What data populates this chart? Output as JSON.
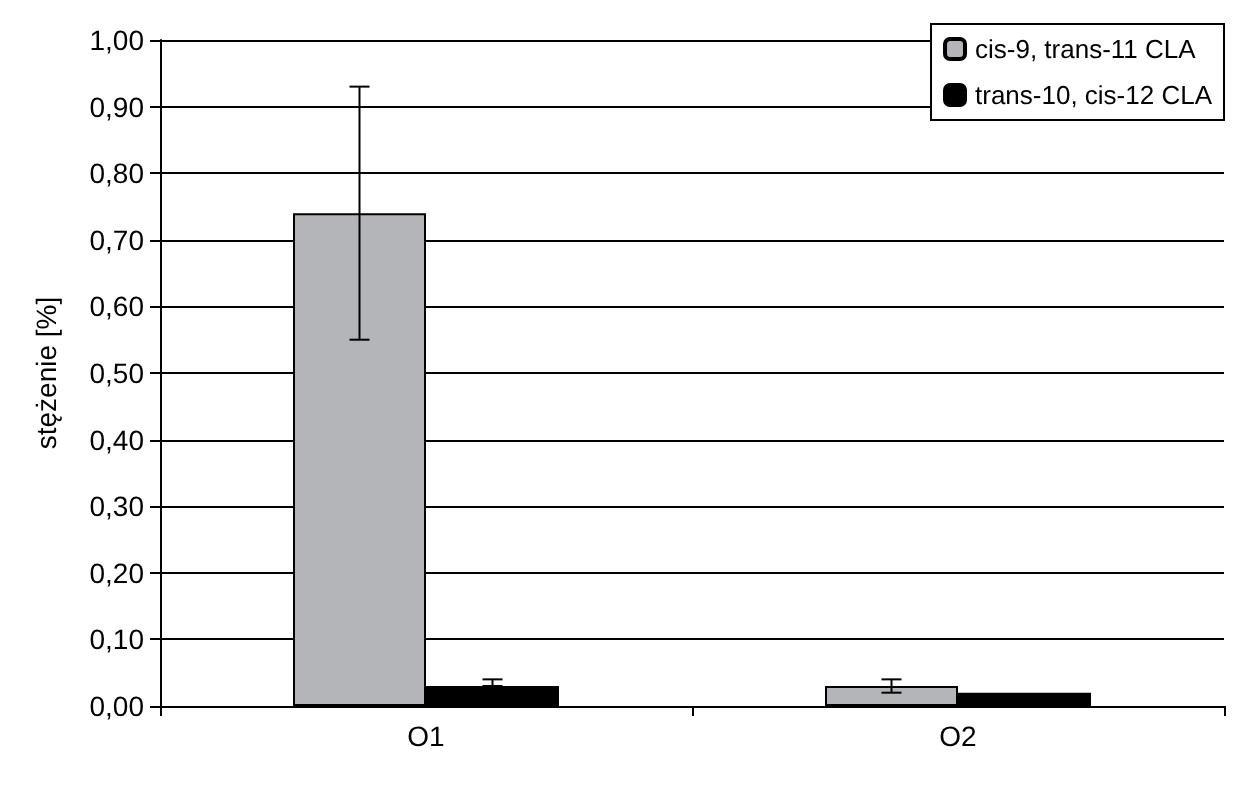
{
  "chart_data": {
    "type": "bar",
    "ylabel": "stężenie [%]",
    "categories": [
      "O1",
      "O2"
    ],
    "series": [
      {
        "name": "cis-9, trans-11 CLA",
        "color": "#b4b5b9",
        "values": [
          0.74,
          0.03
        ],
        "errors": [
          [
            0.55,
            0.93
          ],
          [
            0.02,
            0.04
          ]
        ]
      },
      {
        "name": "trans-10, cis-12 CLA",
        "color": "#000000",
        "values": [
          0.03,
          0.02
        ],
        "errors": [
          [
            0.03,
            0.04
          ],
          null
        ]
      }
    ],
    "ylim": [
      0,
      1
    ],
    "yticks": [
      {
        "value": 0,
        "label": "0,00"
      },
      {
        "value": 0.1,
        "label": "0,10"
      },
      {
        "value": 0.2,
        "label": "0,20"
      },
      {
        "value": 0.3,
        "label": "0,30"
      },
      {
        "value": 0.4,
        "label": "0,40"
      },
      {
        "value": 0.5,
        "label": "0,50"
      },
      {
        "value": 0.6,
        "label": "0,60"
      },
      {
        "value": 0.7,
        "label": "0,70"
      },
      {
        "value": 0.8,
        "label": "0,80"
      },
      {
        "value": 0.9,
        "label": "0,90"
      },
      {
        "value": 1,
        "label": "1,00"
      }
    ],
    "grid": "y",
    "legend": "top right"
  }
}
